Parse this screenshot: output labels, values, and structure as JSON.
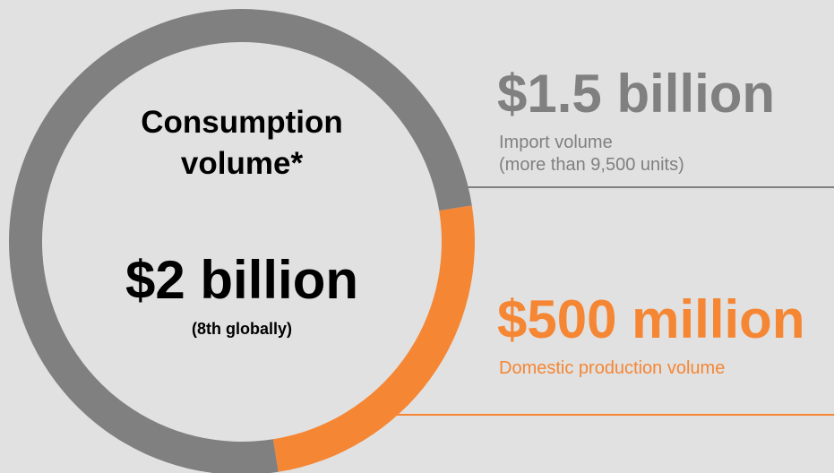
{
  "colors": {
    "background": "#e1e1e1",
    "import": "#808080",
    "domestic": "#f58634",
    "text": "#000000"
  },
  "chart_data": {
    "type": "pie",
    "donut": true,
    "center_title": "Consumption volume*",
    "center_value": "$2 billion",
    "center_note": "(8th globally)",
    "unit": "USD million",
    "series": [
      {
        "name": "Import volume",
        "label": "$1.5 billion",
        "value": 1500,
        "color": "#808080",
        "note": "(more than 9,500 units)"
      },
      {
        "name": "Domestic production volume",
        "label": "$500 million",
        "value": 500,
        "color": "#f58634"
      }
    ]
  }
}
